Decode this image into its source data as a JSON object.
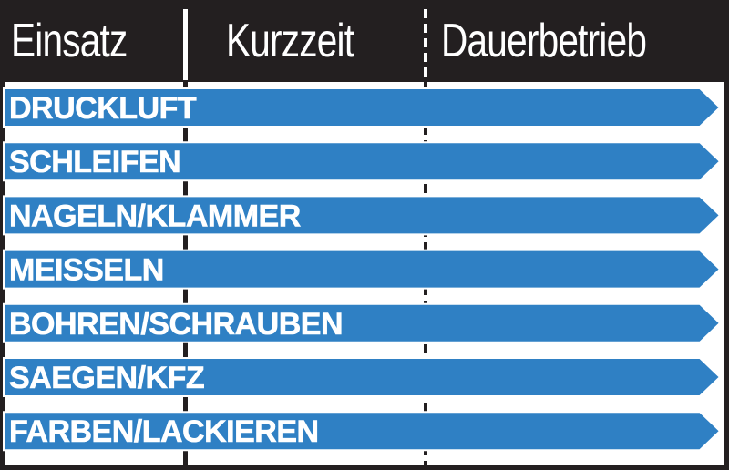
{
  "chart_data": {
    "type": "bar",
    "orientation": "horizontal",
    "columns": [
      "Einsatz",
      "Kurzzeit",
      "Dauerbetrieb"
    ],
    "categories": [
      "DRUCKLUFT",
      "SCHLEIFEN",
      "NAGELN/KLAMMER",
      "MEISSELN",
      "BOHREN/SCHRAUBEN",
      "SAEGEN/KFZ",
      "FARBEN/LACKIEREN"
    ],
    "values": [
      "Dauerbetrieb",
      "Dauerbetrieb",
      "Dauerbetrieb",
      "Dauerbetrieb",
      "Dauerbetrieb",
      "Dauerbetrieb",
      "Dauerbetrieb"
    ]
  },
  "colors": {
    "bar": "#2f80c4",
    "bar_outline": "#ffffff",
    "header_bg": "#231f20",
    "text": "#ffffff"
  }
}
